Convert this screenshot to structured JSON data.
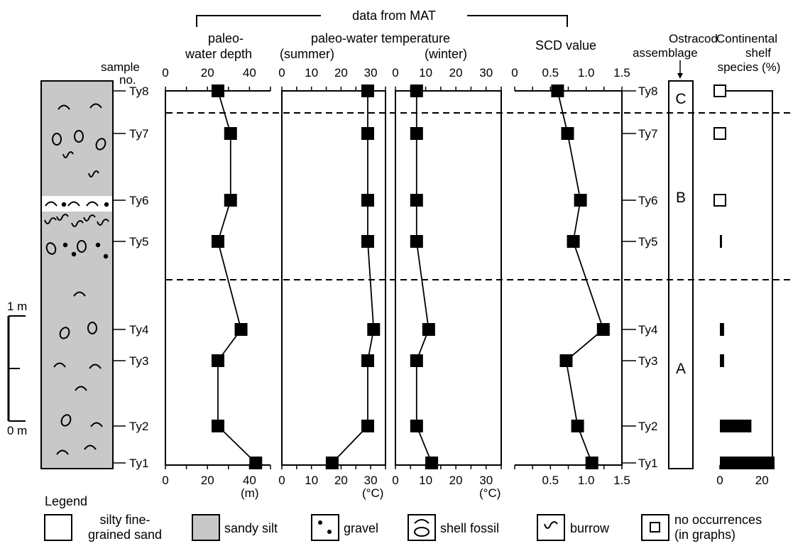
{
  "header": {
    "data_from_mat": "data from MAT",
    "sample_no": "sample no.",
    "depth_title": [
      "paleo-",
      "water depth"
    ],
    "temp_title": "paleo-water temperature",
    "summer_title": "(summer)",
    "winter_title": "(winter)",
    "scd_title": "SCD value",
    "ostracod_title": [
      "Ostracod",
      "assemblage"
    ],
    "shelf_title": [
      "Continental",
      "shelf",
      "species (%)"
    ]
  },
  "units": {
    "depth": "(m)",
    "temp_summer": "(°C)",
    "temp_winter": "(°C)"
  },
  "scale_bar": {
    "top": "1 m",
    "bottom": "0 m"
  },
  "legend": {
    "title": "Legend",
    "sand_label": [
      "silty fine-",
      "grained sand"
    ],
    "silt_label": "sandy silt",
    "gravel_label": "gravel",
    "shell_label": "shell fossil",
    "burrow_label": "burrow",
    "no_occ_label": [
      "no occurrences",
      "(in graphs)"
    ]
  },
  "chart_data": [
    {
      "type": "line",
      "title": "paleo-water depth",
      "xlabel": "(m)",
      "xlim": [
        0,
        50
      ],
      "x_ticks": [
        0,
        20,
        40
      ],
      "samples": [
        "Ty8",
        "Ty7",
        "Ty6",
        "Ty5",
        "Ty4",
        "Ty3",
        "Ty2",
        "Ty1"
      ],
      "values": [
        25,
        31,
        31,
        25,
        36,
        25,
        25,
        43
      ]
    },
    {
      "type": "line",
      "title": "paleo-water temperature (summer)",
      "xlabel": "(°C)",
      "xlim": [
        0,
        35
      ],
      "x_ticks": [
        0,
        10,
        20,
        30
      ],
      "samples": [
        "Ty8",
        "Ty7",
        "Ty6",
        "Ty5",
        "Ty4",
        "Ty3",
        "Ty2",
        "Ty1"
      ],
      "values": [
        29,
        29,
        29,
        29,
        31,
        29,
        29,
        17
      ]
    },
    {
      "type": "line",
      "title": "paleo-water temperature (winter)",
      "xlabel": "(°C)",
      "xlim": [
        0,
        35
      ],
      "x_ticks": [
        0,
        10,
        20,
        30
      ],
      "samples": [
        "Ty8",
        "Ty7",
        "Ty6",
        "Ty5",
        "Ty4",
        "Ty3",
        "Ty2",
        "Ty1"
      ],
      "values": [
        7,
        7,
        7,
        7,
        11,
        7,
        7,
        12
      ]
    },
    {
      "type": "line",
      "title": "SCD value",
      "xlim": [
        0,
        1.5
      ],
      "x_ticks_top": [
        "0",
        "0.5",
        "1.0",
        "1.5"
      ],
      "x_ticks_bottom": [
        "0.5",
        "1.0",
        "1.5"
      ],
      "samples": [
        "Ty8",
        "Ty7",
        "Ty6",
        "Ty5",
        "Ty4",
        "Ty3",
        "Ty2",
        "Ty1"
      ],
      "values": [
        0.6,
        0.74,
        0.92,
        0.82,
        1.24,
        0.72,
        0.88,
        1.08
      ]
    },
    {
      "type": "table",
      "title": "Ostracod assemblage",
      "zones": [
        "C",
        "B",
        "A"
      ]
    },
    {
      "type": "bar",
      "title": "Continental shelf species (%)",
      "xlim": [
        0,
        25
      ],
      "x_ticks": [
        0,
        20
      ],
      "samples": [
        "Ty8",
        "Ty7",
        "Ty6",
        "Ty5",
        "Ty4",
        "Ty3",
        "Ty2",
        "Ty1"
      ],
      "values": [
        0,
        0,
        0,
        1,
        2,
        2,
        15,
        26
      ],
      "no_occurrence": [
        true,
        true,
        true,
        false,
        false,
        false,
        false,
        false
      ]
    }
  ]
}
